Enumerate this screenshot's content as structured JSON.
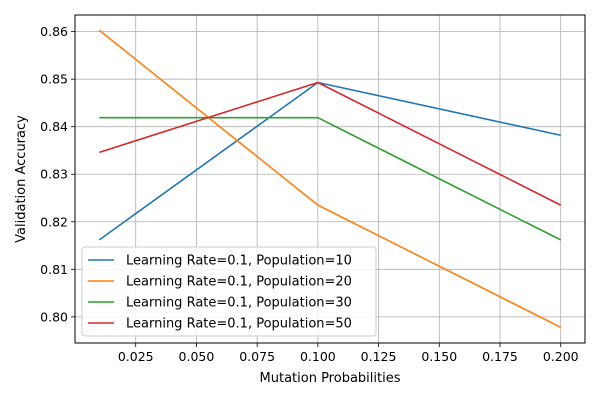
{
  "chart_data": {
    "type": "line",
    "title": "",
    "xlabel": "Mutation Probabilities",
    "ylabel": "Validation Accuracy",
    "x": [
      0.01,
      0.1,
      0.2
    ],
    "xlim": [
      -0.0,
      0.21
    ],
    "ylim": [
      0.7945,
      0.8635
    ],
    "xticks": [
      0.025,
      0.05,
      0.075,
      0.1,
      0.125,
      0.15,
      0.175,
      0.2
    ],
    "xtick_labels": [
      "0.025",
      "0.050",
      "0.075",
      "0.100",
      "0.125",
      "0.150",
      "0.175",
      "0.200"
    ],
    "yticks": [
      0.8,
      0.81,
      0.82,
      0.83,
      0.84,
      0.85,
      0.86
    ],
    "ytick_labels": [
      "0.80",
      "0.81",
      "0.82",
      "0.83",
      "0.84",
      "0.85",
      "0.86"
    ],
    "grid": true,
    "legend_position": "lower-left",
    "series": [
      {
        "name": "Learning Rate=0.1, Population=10",
        "color": "#1f77b4",
        "values": [
          0.8162,
          0.8493,
          0.8382
        ]
      },
      {
        "name": "Learning Rate=0.1, Population=20",
        "color": "#ff7f0e",
        "values": [
          0.8603,
          0.8235,
          0.7978
        ]
      },
      {
        "name": "Learning Rate=0.1, Population=30",
        "color": "#2ca02c",
        "values": [
          0.8419,
          0.8419,
          0.8162
        ]
      },
      {
        "name": "Learning Rate=0.1, Population=50",
        "color": "#d62728",
        "values": [
          0.8346,
          0.8493,
          0.8235
        ]
      }
    ]
  }
}
